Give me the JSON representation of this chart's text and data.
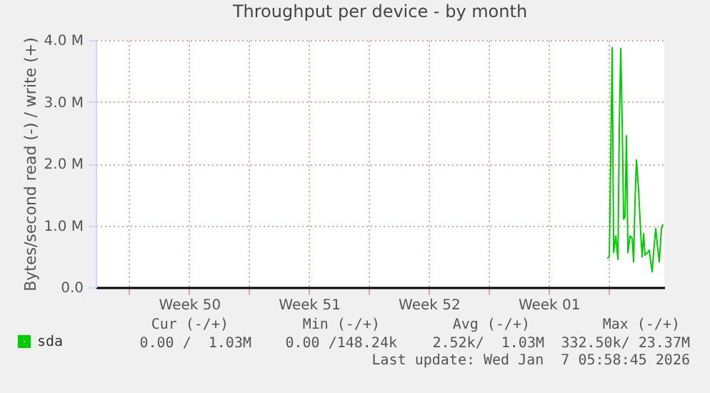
{
  "chart_data": {
    "type": "line",
    "title": "Throughput per device - by month",
    "ylabel": "Bytes/second read (-) / write (+)",
    "x": [
      "2026-01-04T22:00",
      "2026-01-05T01:00",
      "2026-01-05T05:00",
      "2026-01-05T07:00",
      "2026-01-05T10:00",
      "2026-01-05T13:00",
      "2026-01-05T15:00",
      "2026-01-05T17:00",
      "2026-01-05T19:00",
      "2026-01-05T21:00",
      "2026-01-05T23:00",
      "2026-01-06T01:00",
      "2026-01-06T03:00",
      "2026-01-06T06:00",
      "2026-01-06T09:00",
      "2026-01-06T11:00",
      "2026-01-06T13:00",
      "2026-01-06T15:00",
      "2026-01-06T18:00",
      "2026-01-06T21:00",
      "2026-01-06T23:00",
      "2026-01-07T01:00",
      "2026-01-07T03:00",
      "2026-01-07T06:00",
      "2026-01-07T09:00",
      "2026-01-07T11:00",
      "2026-01-07T13:00",
      "2026-01-07T15:00",
      "2026-01-07T18:00",
      "2026-01-07T21:00",
      "2026-01-07T23:00",
      "2026-01-08T02:00",
      "2026-01-08T04:00"
    ],
    "series": [
      {
        "name": "sda",
        "color": "#00cc00",
        "values": [
          0.47,
          0.49,
          3.88,
          0.56,
          0.83,
          0.45,
          2.64,
          3.86,
          2.64,
          1.1,
          1.14,
          2.45,
          0.56,
          0.83,
          0.79,
          0.41,
          1.41,
          2.06,
          1.57,
          0.87,
          0.49,
          0.87,
          0.52,
          0.55,
          0.6,
          0.41,
          0.25,
          0.56,
          0.95,
          0.6,
          0.41,
          0.95,
          1.02
        ]
      }
    ],
    "xlim": [
      "2025-12-06T01:00",
      "2026-01-08T06:00"
    ],
    "xticks": [
      {
        "value": "2025-12-08T00:00",
        "label": null
      },
      {
        "value": "2025-12-11T12:00",
        "label": "Week 50"
      },
      {
        "value": "2025-12-15T00:00",
        "label": null
      },
      {
        "value": "2025-12-18T12:00",
        "label": "Week 51"
      },
      {
        "value": "2025-12-22T00:00",
        "label": null
      },
      {
        "value": "2025-12-25T12:00",
        "label": "Week 52"
      },
      {
        "value": "2025-12-29T00:00",
        "label": null
      },
      {
        "value": "2026-01-01T12:00",
        "label": "Week 01"
      },
      {
        "value": "2026-01-05T00:00",
        "label": null
      }
    ],
    "ylim": [
      0,
      4
    ],
    "yticks": [
      {
        "value": 0,
        "label": "0.0"
      },
      {
        "value": 1,
        "label": "1.0 M"
      },
      {
        "value": 2,
        "label": "2.0 M"
      },
      {
        "value": 3,
        "label": "3.0 M"
      },
      {
        "value": 4,
        "label": "4.0 M"
      }
    ],
    "grid": true,
    "legend": "bottom",
    "marker": "none",
    "line_style": "solid",
    "annotations": [
      "Cur (-/+)",
      "Min (-/+)",
      "Avg (-/+)",
      "Max (-/+)",
      "0.00 /  1.03M",
      "0.00 /148.24k",
      "2.52k/  1.03M",
      "332.50k/ 23.37M",
      "Last update: Wed Jan  7 05:58:45 2026"
    ]
  }
}
